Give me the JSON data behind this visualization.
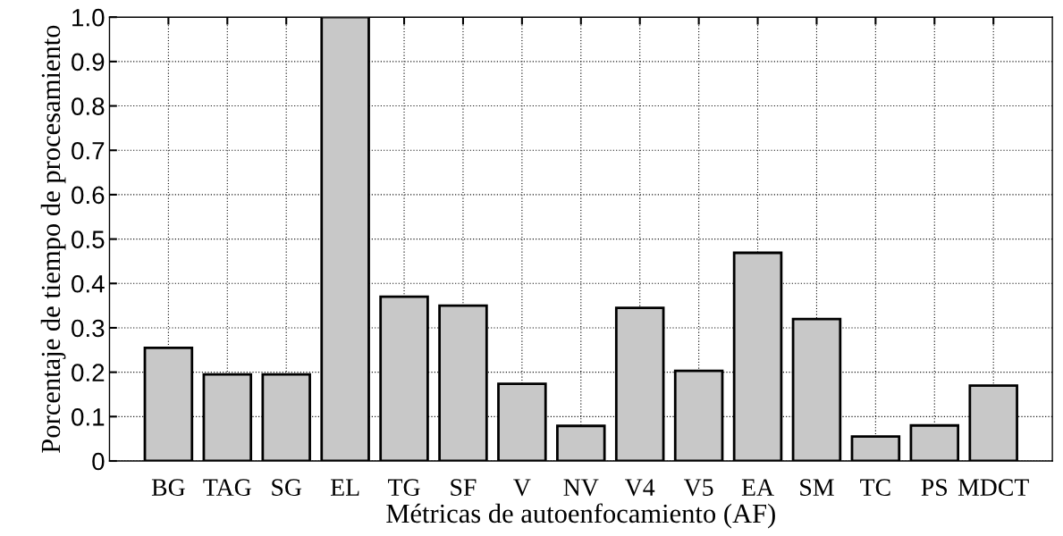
{
  "chart_data": {
    "type": "bar",
    "categories": [
      "BG",
      "TAG",
      "SG",
      "EL",
      "TG",
      "SF",
      "V",
      "NV",
      "V4",
      "V5",
      "EA",
      "SM",
      "TC",
      "PS",
      "MDCT"
    ],
    "values": [
      0.255,
      0.195,
      0.195,
      1.0,
      0.37,
      0.35,
      0.174,
      0.079,
      0.345,
      0.203,
      0.469,
      0.32,
      0.055,
      0.08,
      0.17
    ],
    "color": "#c8c8c8",
    "xlabel": "Métricas de autoenfocamiento (AF)",
    "ylabel": "Porcentaje de tiempo de procesamiento",
    "ylim": [
      0,
      1.0
    ],
    "yticks": [
      0,
      {
        "value": 0.1,
        "label": "0.1"
      },
      {
        "value": 0.2,
        "label": "0.2"
      },
      {
        "value": 0.3,
        "label": "0.3"
      },
      {
        "value": 0.4,
        "label": "0.4"
      },
      {
        "value": 0.5,
        "label": "0.5"
      },
      {
        "value": 0.6,
        "label": "0.6"
      },
      {
        "value": 0.7,
        "label": "0.7"
      },
      {
        "value": 0.8,
        "label": "0.8"
      },
      {
        "value": 0.9,
        "label": "0.9"
      },
      {
        "value": 1.0,
        "label": "1.0"
      }
    ],
    "grid": true
  }
}
